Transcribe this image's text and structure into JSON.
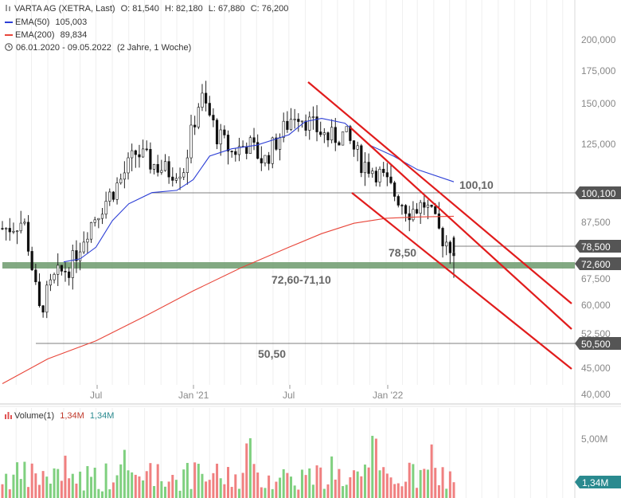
{
  "header": {
    "title": "VARTA AG (XETRA, Last)",
    "open": "O: 81,540",
    "high": "H: 82,180",
    "low": "L: 67,880",
    "close": "C: 76,200",
    "ema50_label": "EMA(50)",
    "ema50_value": "105,003",
    "ema200_label": "EMA(200)",
    "ema200_value": "89,834",
    "range": "06.01.2020 - 09.05.2022",
    "duration": "(2 Jahre, 1 Woche)"
  },
  "volume_header": {
    "label": "Volume(1)",
    "value_red": "1,34M",
    "value_teal": "1,34M"
  },
  "colors": {
    "up": "#3a9f4a",
    "down": "#c0392b",
    "ema50": "#2d3fd6",
    "ema200": "#e8463a",
    "trendline": "#e11c1c",
    "support_band": "#6c9a6c",
    "volume_up": "#7fd07f",
    "volume_down": "#f08080",
    "volume_badge": "#2a8a8f"
  },
  "axis": {
    "price_ticks": [
      "200,000",
      "175,000",
      "150,000",
      "125,000",
      "87,500",
      "67,500",
      "60,000",
      "52,500",
      "45,000",
      "40,000"
    ],
    "x_ticks": [
      "Jul",
      "Jan '21",
      "Jul",
      "Jan '22"
    ],
    "volume_ticks": [
      "5,00M"
    ]
  },
  "level_labels": {
    "l100": "100,10",
    "l78": "78,50",
    "l72": "72,60-71,10",
    "l50": "50,50"
  },
  "price_badges": [
    "100,100",
    "78,500",
    "72,600",
    "50,500"
  ],
  "volume_badge": "1,34M",
  "chart_data": {
    "type": "candlestick",
    "title": "VARTA AG (XETRA, Last)",
    "y_scale": "log",
    "ylim": [
      40,
      210
    ],
    "x_range": [
      "2020-01-06",
      "2022-05-09"
    ],
    "levels": [
      100.1,
      78.5,
      50.5
    ],
    "support_zone": [
      71.1,
      72.6
    ],
    "ema50_points": [
      [
        "2020-05-01",
        73
      ],
      [
        "2020-06-01",
        74
      ],
      [
        "2020-07-01",
        78
      ],
      [
        "2020-08-01",
        88
      ],
      [
        "2020-09-01",
        95
      ],
      [
        "2020-10-15",
        100
      ],
      [
        "2020-12-01",
        101
      ],
      [
        "2021-01-01",
        106
      ],
      [
        "2021-02-01",
        118
      ],
      [
        "2021-03-15",
        122
      ],
      [
        "2021-05-01",
        124
      ],
      [
        "2021-06-01",
        127
      ],
      [
        "2021-07-01",
        130
      ],
      [
        "2021-08-01",
        138
      ],
      [
        "2021-09-01",
        140
      ],
      [
        "2021-10-15",
        137
      ],
      [
        "2021-12-01",
        124
      ],
      [
        "2022-01-15",
        118
      ],
      [
        "2022-03-01",
        111
      ],
      [
        "2022-05-09",
        105
      ]
    ],
    "ema200_points": [
      [
        "2020-01-06",
        42
      ],
      [
        "2020-04-01",
        47
      ],
      [
        "2020-07-01",
        51
      ],
      [
        "2020-10-01",
        57
      ],
      [
        "2021-01-01",
        64
      ],
      [
        "2021-04-01",
        71
      ],
      [
        "2021-07-01",
        78
      ],
      [
        "2021-09-01",
        83
      ],
      [
        "2021-11-01",
        87
      ],
      [
        "2022-01-01",
        89
      ],
      [
        "2022-03-01",
        89.5
      ],
      [
        "2022-05-09",
        89.8
      ]
    ],
    "trendlines": [
      {
        "from": [
          "2021-07-01",
          165
        ],
        "to": [
          "2022-12-31",
          61
        ]
      },
      {
        "from": [
          "2021-10-15",
          135
        ],
        "to": [
          "2022-12-31",
          54
        ]
      },
      {
        "from": [
          "2021-10-15",
          100
        ],
        "to": [
          "2022-12-31",
          46
        ]
      }
    ],
    "monthly_closes": [
      [
        "2020-01",
        85
      ],
      [
        "2020-02",
        88
      ],
      [
        "2020-03",
        58
      ],
      [
        "2020-04",
        68
      ],
      [
        "2020-05",
        72
      ],
      [
        "2020-06",
        85
      ],
      [
        "2020-07",
        95
      ],
      [
        "2020-08",
        105
      ],
      [
        "2020-09",
        120
      ],
      [
        "2020-10",
        114
      ],
      [
        "2020-11",
        110
      ],
      [
        "2020-12",
        112
      ],
      [
        "2021-01",
        155
      ],
      [
        "2021-02",
        130
      ],
      [
        "2021-03",
        120
      ],
      [
        "2021-04",
        125
      ],
      [
        "2021-05",
        115
      ],
      [
        "2021-06",
        130
      ],
      [
        "2021-07",
        145
      ],
      [
        "2021-08",
        135
      ],
      [
        "2021-09",
        128
      ],
      [
        "2021-10",
        130
      ],
      [
        "2021-11",
        115
      ],
      [
        "2021-12",
        110
      ],
      [
        "2022-01",
        100
      ],
      [
        "2022-02",
        92
      ],
      [
        "2022-03",
        95
      ],
      [
        "2022-04",
        82
      ],
      [
        "2022-05",
        76.2
      ]
    ],
    "last": {
      "open": 81.54,
      "high": 82.18,
      "low": 67.88,
      "close": 76.2
    },
    "volume_last": 1.34
  }
}
